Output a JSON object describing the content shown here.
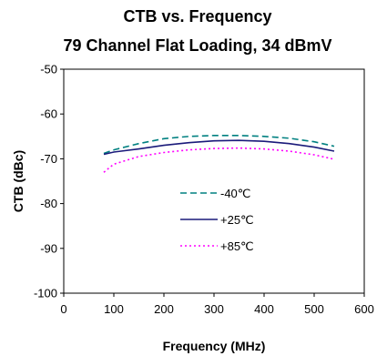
{
  "chart_data": {
    "type": "line",
    "title": "CTB vs. Frequency",
    "subtitle": "79 Channel Flat Loading, 34 dBmV",
    "xlabel": "Frequency (MHz)",
    "ylabel": "CTB (dBc)",
    "xlim": [
      0,
      600
    ],
    "ylim": [
      -100,
      -50
    ],
    "xticks": [
      0,
      100,
      200,
      300,
      400,
      500,
      600
    ],
    "yticks": [
      -50,
      -60,
      -70,
      -80,
      -90,
      -100
    ],
    "grid": false,
    "legend_position": "center",
    "series": [
      {
        "name": "-40℃",
        "color": "#008080",
        "dash": "dashed",
        "x": [
          80,
          100,
          150,
          200,
          250,
          300,
          350,
          400,
          450,
          500,
          540
        ],
        "y": [
          -68.8,
          -68.0,
          -66.6,
          -65.5,
          -65.0,
          -64.8,
          -64.8,
          -65.0,
          -65.4,
          -66.2,
          -67.2
        ]
      },
      {
        "name": "+25℃",
        "color": "#1a1a7a",
        "dash": "solid",
        "x": [
          80,
          100,
          150,
          200,
          250,
          300,
          350,
          400,
          450,
          500,
          540
        ],
        "y": [
          -69.0,
          -68.5,
          -67.8,
          -67.0,
          -66.4,
          -66.0,
          -65.9,
          -66.1,
          -66.6,
          -67.4,
          -68.3
        ]
      },
      {
        "name": "+85℃",
        "color": "#ff00ff",
        "dash": "dotted",
        "x": [
          80,
          100,
          150,
          200,
          250,
          300,
          350,
          400,
          450,
          500,
          540
        ],
        "y": [
          -73.0,
          -71.2,
          -69.5,
          -68.6,
          -68.0,
          -67.7,
          -67.6,
          -67.8,
          -68.3,
          -69.1,
          -70.1
        ]
      }
    ]
  }
}
